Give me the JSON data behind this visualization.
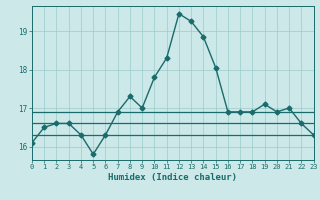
{
  "xlabel": "Humidex (Indice chaleur)",
  "background_color": "#cce8e8",
  "grid_color": "#99cccc",
  "line_color": "#1a6b6b",
  "xlim": [
    0,
    23
  ],
  "ylim": [
    15.65,
    19.65
  ],
  "yticks": [
    16,
    17,
    18,
    19
  ],
  "xticks": [
    0,
    1,
    2,
    3,
    4,
    5,
    6,
    7,
    8,
    9,
    10,
    11,
    12,
    13,
    14,
    15,
    16,
    17,
    18,
    19,
    20,
    21,
    22,
    23
  ],
  "series": [
    {
      "x": [
        0,
        1,
        2,
        3,
        4,
        5,
        6,
        7,
        8,
        9,
        10,
        11,
        12,
        13,
        14,
        15,
        16,
        17,
        18,
        19,
        20,
        21,
        22,
        23
      ],
      "y": [
        16.1,
        16.5,
        16.6,
        16.6,
        16.3,
        15.8,
        16.3,
        16.9,
        17.3,
        17.0,
        17.8,
        18.3,
        19.45,
        19.25,
        18.85,
        18.05,
        16.9,
        16.9,
        16.9,
        17.1,
        16.9,
        17.0,
        16.6,
        16.3
      ],
      "marker": "D",
      "markersize": 2.5,
      "linewidth": 1.0
    },
    {
      "x": [
        0,
        23
      ],
      "y": [
        16.3,
        16.3
      ],
      "marker": null,
      "markersize": 0,
      "linewidth": 0.9
    },
    {
      "x": [
        0,
        23
      ],
      "y": [
        16.6,
        16.6
      ],
      "marker": null,
      "markersize": 0,
      "linewidth": 0.9
    },
    {
      "x": [
        0,
        23
      ],
      "y": [
        16.9,
        16.9
      ],
      "marker": null,
      "markersize": 0,
      "linewidth": 0.9
    }
  ]
}
